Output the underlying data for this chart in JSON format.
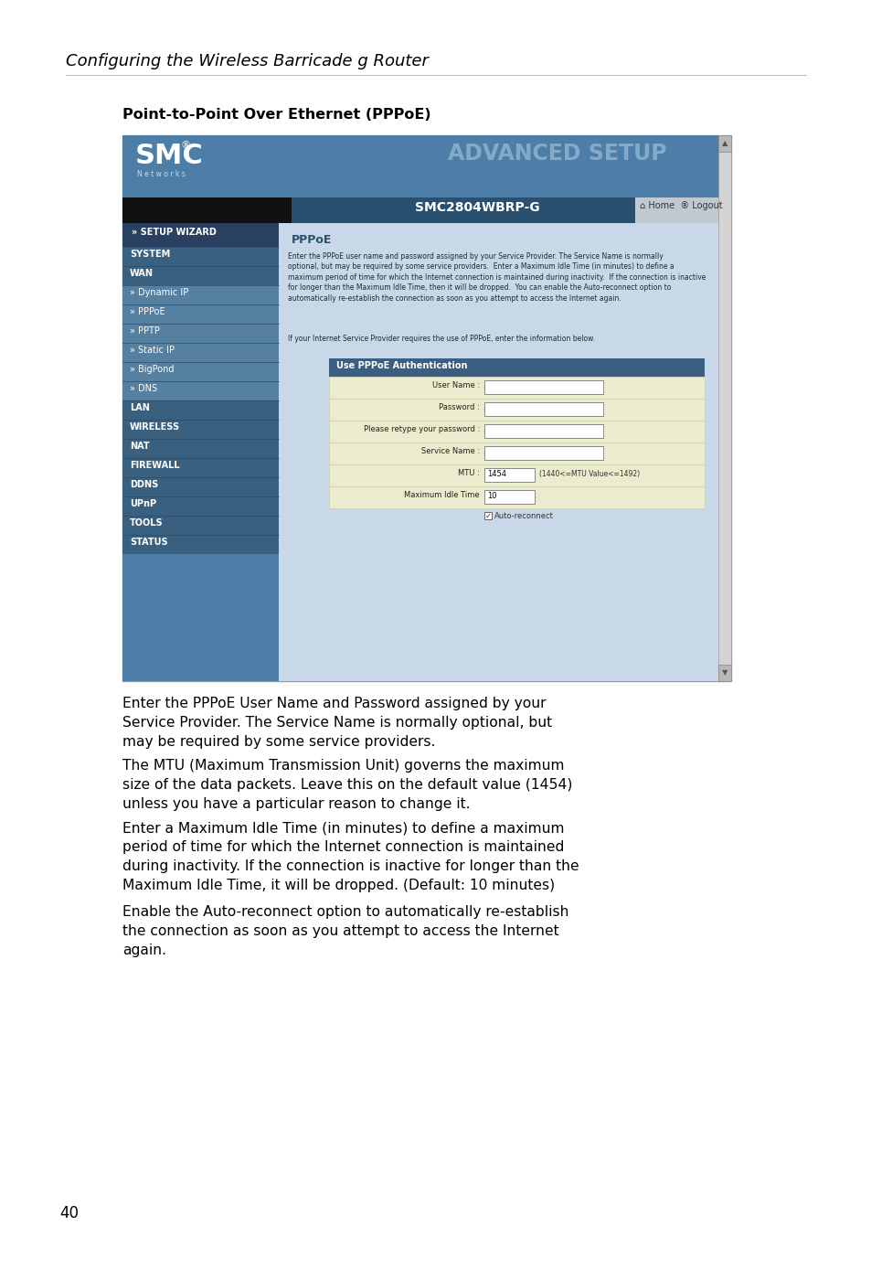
{
  "page_bg": "#ffffff",
  "header_italic_text": "Configuring the Wireless Barricade g Router",
  "header_italic_size": 13,
  "section_title": "Point-to-Point Over Ethernet (PPPoE)",
  "section_title_size": 11.5,
  "body_paragraphs": [
    "Enter the PPPoE User Name and Password assigned by your\nService Provider. The Service Name is normally optional, but\nmay be required by some service providers.",
    "The MTU (Maximum Transmission Unit) governs the maximum\nsize of the data packets. Leave this on the default value (1454)\nunless you have a particular reason to change it.",
    "Enter a Maximum Idle Time (in minutes) to define a maximum\nperiod of time for which the Internet connection is maintained\nduring inactivity. If the connection is inactive for longer than the\nMaximum Idle Time, it will be dropped. (Default: 10 minutes)",
    "Enable the Auto-reconnect option to automatically re-establish\nthe connection as soon as you attempt to access the Internet\nagain."
  ],
  "body_text_size": 11.2,
  "page_number": "40",
  "page_number_size": 12,
  "smc_blue": "#4d7ea8",
  "smc_dark_blue": "#2a5070",
  "smc_nav_header": "#3d6d8a",
  "smc_nav_sub": "#6090b0",
  "smc_content_bg": "#c8d8e8",
  "smc_form_bg": "#e8e8c0",
  "smc_form_header": "#3a5f80",
  "white": "#ffffff",
  "black": "#000000",
  "gray_border": "#999999",
  "desc_text": "Enter the PPPoE user name and password assigned by your Service Provider. The Service Name is normally\noptional, but may be required by some service providers.  Enter a Maximum Idle Time (in minutes) to define a\nmaximum period of time for which the Internet connection is maintained during inactivity.  If the connection is inactive\nfor longer than the Maximum Idle Time, then it will be dropped.  You can enable the Auto-reconnect option to\nautomatically re-establish the connection as soon as you attempt to access the Internet again.",
  "isp_text": "If your Internet Service Provider requires the use of PPPoE, enter the information below."
}
